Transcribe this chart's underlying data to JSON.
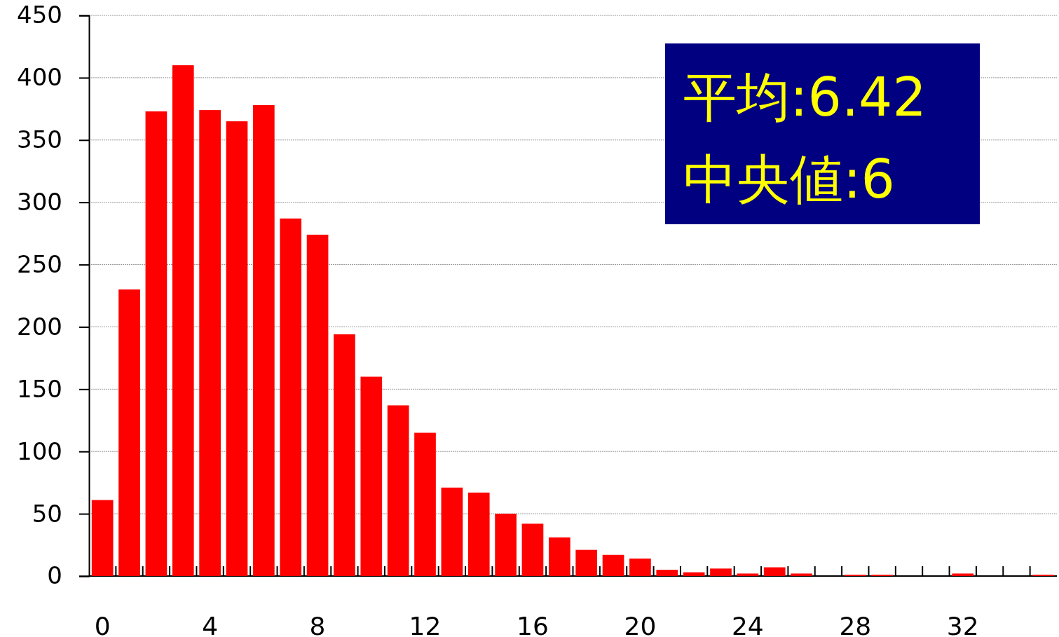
{
  "chart_data": {
    "type": "bar",
    "categories": [
      "0",
      null,
      null,
      null,
      "4",
      null,
      null,
      null,
      "8",
      null,
      null,
      null,
      "12",
      null,
      null,
      null,
      "16",
      null,
      null,
      null,
      "20",
      null,
      null,
      null,
      "24",
      null,
      null,
      null,
      "28",
      null,
      null,
      null,
      "32",
      null,
      null,
      null
    ],
    "values": [
      61,
      230,
      373,
      410,
      374,
      365,
      378,
      287,
      274,
      194,
      160,
      137,
      115,
      71,
      67,
      50,
      42,
      31,
      21,
      17,
      14,
      5,
      3,
      6,
      2,
      7,
      2,
      0,
      1,
      1,
      0,
      0,
      2,
      0,
      0,
      1
    ],
    "color": "#ff0000",
    "ylim": [
      0,
      450
    ],
    "yticks": [
      0,
      50,
      100,
      150,
      200,
      250,
      300,
      350,
      400,
      450
    ],
    "grid": "y",
    "annotations": [
      "平均:6.42",
      "中央値:6"
    ]
  }
}
